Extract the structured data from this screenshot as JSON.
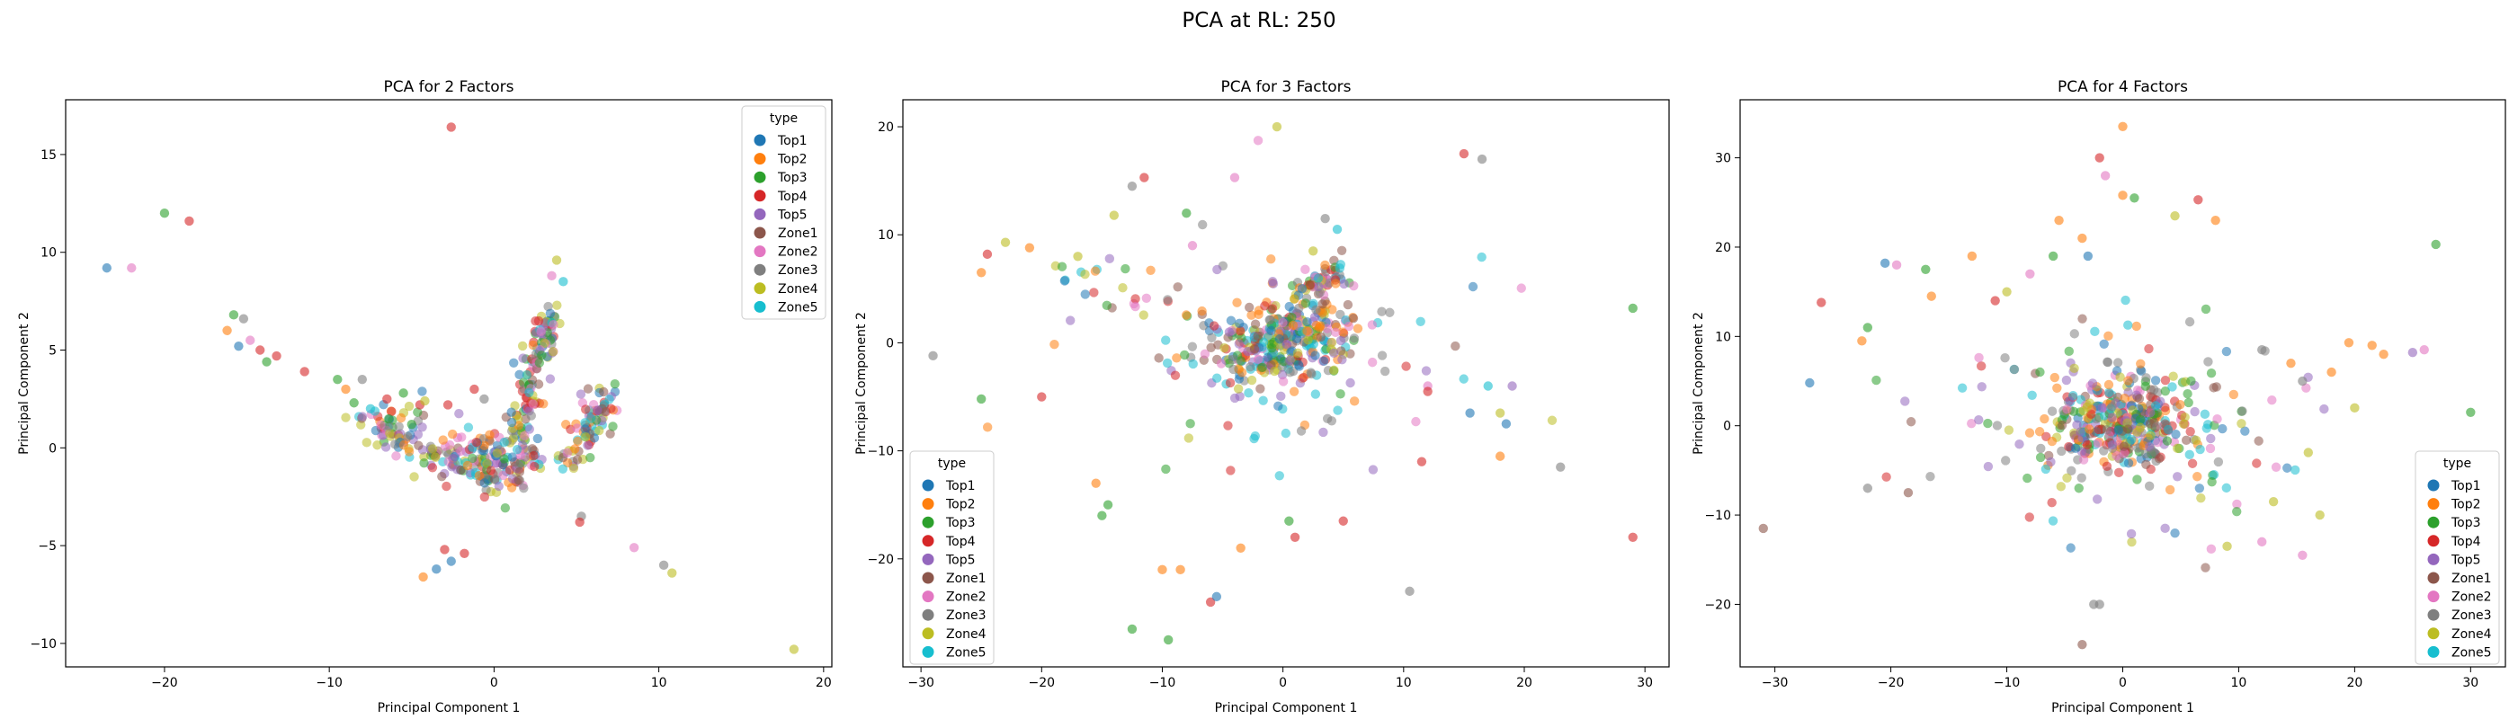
{
  "figure": {
    "suptitle": "PCA at RL: 250"
  },
  "legend": {
    "title": "type",
    "entries": [
      {
        "label": "Top1",
        "color": "#1f77b4"
      },
      {
        "label": "Top2",
        "color": "#ff7f0e"
      },
      {
        "label": "Top3",
        "color": "#2ca02c"
      },
      {
        "label": "Top4",
        "color": "#d62728"
      },
      {
        "label": "Top5",
        "color": "#9467bd"
      },
      {
        "label": "Zone1",
        "color": "#8c564b"
      },
      {
        "label": "Zone2",
        "color": "#e377c2"
      },
      {
        "label": "Zone3",
        "color": "#7f7f7f"
      },
      {
        "label": "Zone4",
        "color": "#bcbd22"
      },
      {
        "label": "Zone5",
        "color": "#17becf"
      }
    ]
  },
  "chart_data": [
    {
      "type": "scatter",
      "title": "PCA for 2 Factors",
      "xlabel": "Principal Component 1",
      "ylabel": "Principal Component 2",
      "xlim": [
        -26,
        20.5
      ],
      "ylim": [
        -11.2,
        17.8
      ],
      "xticks": [
        -20,
        -10,
        0,
        10,
        20
      ],
      "yticks": [
        -10,
        -5,
        0,
        5,
        10,
        15
      ],
      "grid": false,
      "legend_placement": "top-right",
      "points": [
        {
          "x": -23.5,
          "y": 9.2,
          "c": 0
        },
        {
          "x": -22.0,
          "y": 9.2,
          "c": 6
        },
        {
          "x": -20.0,
          "y": 12.0,
          "c": 2
        },
        {
          "x": -18.5,
          "y": 11.6,
          "c": 3
        },
        {
          "x": -2.6,
          "y": 16.4,
          "c": 3
        },
        {
          "x": -16.2,
          "y": 6.0,
          "c": 1
        },
        {
          "x": -15.8,
          "y": 6.8,
          "c": 2
        },
        {
          "x": -15.2,
          "y": 6.6,
          "c": 7
        },
        {
          "x": -15.5,
          "y": 5.2,
          "c": 0
        },
        {
          "x": -14.8,
          "y": 5.5,
          "c": 6
        },
        {
          "x": -14.2,
          "y": 5.0,
          "c": 3
        },
        {
          "x": -13.8,
          "y": 4.4,
          "c": 2
        },
        {
          "x": -13.2,
          "y": 4.7,
          "c": 3
        },
        {
          "x": -11.5,
          "y": 3.9,
          "c": 3
        },
        {
          "x": -9.5,
          "y": 3.5,
          "c": 2
        },
        {
          "x": -9.0,
          "y": 3.0,
          "c": 1
        },
        {
          "x": -8.0,
          "y": 3.5,
          "c": 7
        },
        {
          "x": -8.5,
          "y": 2.3,
          "c": 2
        },
        {
          "x": -7.5,
          "y": 2.0,
          "c": 9
        },
        {
          "x": -6.5,
          "y": 2.5,
          "c": 3
        },
        {
          "x": -5.5,
          "y": 2.8,
          "c": 2
        },
        {
          "x": -5.0,
          "y": 1.2,
          "c": 2
        },
        {
          "x": -4.5,
          "y": 2.2,
          "c": 3
        },
        {
          "x": -4.2,
          "y": 2.4,
          "c": 8
        },
        {
          "x": -3.0,
          "y": -5.2,
          "c": 3
        },
        {
          "x": -2.6,
          "y": -5.8,
          "c": 0
        },
        {
          "x": -1.8,
          "y": -5.4,
          "c": 3
        },
        {
          "x": -3.5,
          "y": -6.2,
          "c": 0
        },
        {
          "x": -4.3,
          "y": -6.6,
          "c": 1
        },
        {
          "x": 18.2,
          "y": -10.3,
          "c": 8
        },
        {
          "x": 10.3,
          "y": -6.0,
          "c": 7
        },
        {
          "x": 10.8,
          "y": -6.4,
          "c": 8
        },
        {
          "x": 8.5,
          "y": -5.1,
          "c": 6
        },
        {
          "x": 5.3,
          "y": -3.5,
          "c": 7
        },
        {
          "x": 5.2,
          "y": -3.8,
          "c": 3
        },
        {
          "x": 3.8,
          "y": 9.6,
          "c": 8
        },
        {
          "x": 4.2,
          "y": 8.5,
          "c": 9
        },
        {
          "x": 3.5,
          "y": 8.8,
          "c": 6
        },
        {
          "x": -2.8,
          "y": 2.2,
          "c": 3
        },
        {
          "x": -1.2,
          "y": 3.0,
          "c": 3
        },
        {
          "x": -0.6,
          "y": 2.5,
          "c": 7
        }
      ],
      "clusters": [
        {
          "x1": -8,
          "y1": 1.5,
          "x2": 0,
          "y2": -1.2,
          "sd": 0.7,
          "n": 140
        },
        {
          "x1": -1,
          "y1": -0.5,
          "x2": 2,
          "y2": -0.8,
          "sd": 0.7,
          "n": 90
        },
        {
          "x1": 1,
          "y1": 0,
          "x2": 3.5,
          "y2": 7,
          "sd": 0.45,
          "n": 130
        },
        {
          "x1": 4.6,
          "y1": -1,
          "x2": 6.8,
          "y2": 2.6,
          "sd": 0.5,
          "n": 80
        }
      ]
    },
    {
      "type": "scatter",
      "title": "PCA for 3 Factors",
      "xlabel": "Principal Component 1",
      "ylabel": "Principal Component 2",
      "xlim": [
        -31.5,
        32
      ],
      "ylim": [
        -30,
        22.5
      ],
      "xticks": [
        -30,
        -20,
        -10,
        0,
        10,
        20,
        30
      ],
      "yticks": [
        -20,
        -10,
        0,
        10,
        20
      ],
      "grid": false,
      "legend_placement": "bottom-left",
      "points": [
        {
          "x": -0.5,
          "y": 20.0,
          "c": 8
        },
        {
          "x": -29.0,
          "y": -1.2,
          "c": 7
        },
        {
          "x": -25.0,
          "y": 6.5,
          "c": 1
        },
        {
          "x": -24.5,
          "y": 8.2,
          "c": 3
        },
        {
          "x": -23.0,
          "y": 9.3,
          "c": 8
        },
        {
          "x": -21.0,
          "y": 8.8,
          "c": 1
        },
        {
          "x": -25.0,
          "y": -5.2,
          "c": 2
        },
        {
          "x": -20.0,
          "y": -5.0,
          "c": 3
        },
        {
          "x": -17.0,
          "y": 8.0,
          "c": 8
        },
        {
          "x": -15.5,
          "y": -13.0,
          "c": 1
        },
        {
          "x": -15.0,
          "y": -16.0,
          "c": 2
        },
        {
          "x": -14.5,
          "y": -15.0,
          "c": 2
        },
        {
          "x": -14.0,
          "y": 11.8,
          "c": 8
        },
        {
          "x": -12.5,
          "y": 14.5,
          "c": 7
        },
        {
          "x": -11.5,
          "y": 15.3,
          "c": 3
        },
        {
          "x": -12.5,
          "y": -26.5,
          "c": 2
        },
        {
          "x": -10.0,
          "y": -21.0,
          "c": 1
        },
        {
          "x": -8.5,
          "y": -21.0,
          "c": 1
        },
        {
          "x": -9.5,
          "y": -27.5,
          "c": 2
        },
        {
          "x": -6.0,
          "y": -24.0,
          "c": 3
        },
        {
          "x": -5.5,
          "y": -23.5,
          "c": 0
        },
        {
          "x": -4.0,
          "y": 15.3,
          "c": 6
        },
        {
          "x": -3.5,
          "y": -19.0,
          "c": 1
        },
        {
          "x": 1.0,
          "y": -18.0,
          "c": 3
        },
        {
          "x": 0.5,
          "y": -16.5,
          "c": 2
        },
        {
          "x": 4.5,
          "y": 10.5,
          "c": 9
        },
        {
          "x": 5.0,
          "y": -16.5,
          "c": 3
        },
        {
          "x": 10.5,
          "y": -23.0,
          "c": 7
        },
        {
          "x": 11.5,
          "y": -11.0,
          "c": 3
        },
        {
          "x": 15.0,
          "y": 17.5,
          "c": 3
        },
        {
          "x": 16.5,
          "y": 17.0,
          "c": 7
        },
        {
          "x": 15.5,
          "y": -6.5,
          "c": 0
        },
        {
          "x": 17.0,
          "y": -4.0,
          "c": 9
        },
        {
          "x": 18.0,
          "y": -6.5,
          "c": 8
        },
        {
          "x": 18.5,
          "y": -7.5,
          "c": 0
        },
        {
          "x": 19.0,
          "y": -4.0,
          "c": 4
        },
        {
          "x": 18.0,
          "y": -10.5,
          "c": 1
        },
        {
          "x": 23.0,
          "y": -11.5,
          "c": 7
        },
        {
          "x": 29.0,
          "y": 3.2,
          "c": 2
        },
        {
          "x": 29.0,
          "y": -18.0,
          "c": 3
        },
        {
          "x": 12.0,
          "y": -4.0,
          "c": 6
        },
        {
          "x": 12.0,
          "y": -4.5,
          "c": 3
        },
        {
          "x": 3.5,
          "y": 11.5,
          "c": 7
        },
        {
          "x": 2.5,
          "y": 8.5,
          "c": 8
        },
        {
          "x": -8.0,
          "y": 12.0,
          "c": 2
        },
        {
          "x": -7.5,
          "y": 9.0,
          "c": 6
        }
      ],
      "clusters": [
        {
          "x1": -4,
          "y1": -1.5,
          "x2": 4,
          "y2": 1.5,
          "sd": 1.8,
          "n": 300
        },
        {
          "x1": 1.5,
          "y1": 5,
          "x2": 4.5,
          "y2": 6.5,
          "sd": 0.7,
          "n": 60
        },
        {
          "x1": -5,
          "y1": 2,
          "x2": 5,
          "y2": -2,
          "sd": 3.5,
          "n": 60
        },
        {
          "x1": -12,
          "y1": 0,
          "x2": 12,
          "y2": 0,
          "sd": 5.5,
          "n": 45
        },
        {
          "x1": -18,
          "y1": 6,
          "x2": -8,
          "y2": 4,
          "sd": 1.2,
          "n": 25
        }
      ]
    },
    {
      "type": "scatter",
      "title": "PCA for 4 Factors",
      "xlabel": "Principal Component 1",
      "ylabel": "Principal Component 2",
      "xlim": [
        -33,
        33
      ],
      "ylim": [
        -27,
        36.5
      ],
      "xticks": [
        -30,
        -20,
        -10,
        0,
        10,
        20,
        30
      ],
      "yticks": [
        -20,
        -10,
        0,
        10,
        20,
        30
      ],
      "grid": false,
      "legend_placement": "bottom-right",
      "points": [
        {
          "x": 0.0,
          "y": 33.5,
          "c": 1
        },
        {
          "x": -2.0,
          "y": 30.0,
          "c": 3
        },
        {
          "x": -1.5,
          "y": 28.0,
          "c": 6
        },
        {
          "x": 0.0,
          "y": 25.8,
          "c": 1
        },
        {
          "x": 1.0,
          "y": 25.5,
          "c": 2
        },
        {
          "x": 4.5,
          "y": 23.5,
          "c": 8
        },
        {
          "x": 6.5,
          "y": 25.3,
          "c": 3
        },
        {
          "x": 8.0,
          "y": 23.0,
          "c": 1
        },
        {
          "x": -5.5,
          "y": 23.0,
          "c": 1
        },
        {
          "x": -3.5,
          "y": 21.0,
          "c": 1
        },
        {
          "x": -3.0,
          "y": 19.0,
          "c": 0
        },
        {
          "x": -6.0,
          "y": 19.0,
          "c": 2
        },
        {
          "x": -8.0,
          "y": 17.0,
          "c": 6
        },
        {
          "x": -13.0,
          "y": 19.0,
          "c": 1
        },
        {
          "x": -17.0,
          "y": 17.5,
          "c": 2
        },
        {
          "x": -19.5,
          "y": 18.0,
          "c": 6
        },
        {
          "x": -20.5,
          "y": 18.2,
          "c": 0
        },
        {
          "x": -16.5,
          "y": 14.5,
          "c": 1
        },
        {
          "x": -11.0,
          "y": 14.0,
          "c": 3
        },
        {
          "x": -10.0,
          "y": 15.0,
          "c": 8
        },
        {
          "x": -26.0,
          "y": 13.8,
          "c": 3
        },
        {
          "x": -22.0,
          "y": 11.0,
          "c": 2
        },
        {
          "x": -22.5,
          "y": 9.5,
          "c": 1
        },
        {
          "x": -27.0,
          "y": 4.8,
          "c": 0
        },
        {
          "x": -31.0,
          "y": -11.5,
          "c": 5
        },
        {
          "x": -22.0,
          "y": -7.0,
          "c": 7
        },
        {
          "x": -18.5,
          "y": -7.5,
          "c": 5
        },
        {
          "x": -2.5,
          "y": -20.0,
          "c": 7
        },
        {
          "x": -2.0,
          "y": -20.0,
          "c": 7
        },
        {
          "x": -3.5,
          "y": -24.5,
          "c": 5
        },
        {
          "x": 27.0,
          "y": 20.3,
          "c": 2
        },
        {
          "x": 30.0,
          "y": 1.5,
          "c": 2
        },
        {
          "x": 26.0,
          "y": 8.5,
          "c": 6
        },
        {
          "x": 25.0,
          "y": 8.2,
          "c": 4
        },
        {
          "x": 22.5,
          "y": 8.0,
          "c": 1
        },
        {
          "x": 21.5,
          "y": 9.0,
          "c": 1
        },
        {
          "x": 19.5,
          "y": 9.3,
          "c": 1
        },
        {
          "x": 15.5,
          "y": -14.5,
          "c": 6
        },
        {
          "x": 17.0,
          "y": -10.0,
          "c": 8
        },
        {
          "x": 9.0,
          "y": -13.5,
          "c": 8
        },
        {
          "x": 12.0,
          "y": -13.0,
          "c": 6
        },
        {
          "x": 13.0,
          "y": -8.5,
          "c": 8
        },
        {
          "x": 14.5,
          "y": 7.0,
          "c": 1
        },
        {
          "x": 15.5,
          "y": 5.0,
          "c": 7
        },
        {
          "x": 18.0,
          "y": 6.0,
          "c": 1
        },
        {
          "x": 16.0,
          "y": -3.0,
          "c": 8
        },
        {
          "x": 20.0,
          "y": 2.0,
          "c": 8
        },
        {
          "x": 12.0,
          "y": 8.5,
          "c": 7
        }
      ],
      "clusters": [
        {
          "x1": -3,
          "y1": 0,
          "x2": 3,
          "y2": 0,
          "sd": 2.2,
          "n": 320
        },
        {
          "x1": -12,
          "y1": 0,
          "x2": 12,
          "y2": 0,
          "sd": 6,
          "n": 110
        },
        {
          "x1": -5,
          "y1": 8,
          "x2": 5,
          "y2": -8,
          "sd": 4,
          "n": 60
        }
      ]
    }
  ]
}
